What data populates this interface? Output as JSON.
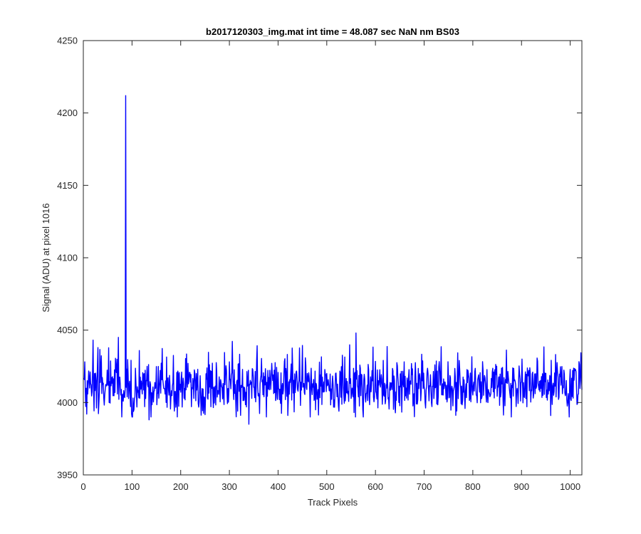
{
  "chart_data": {
    "type": "line",
    "title": "b2017120303_img.mat int time = 48.087 sec  NaN nm BS03",
    "xlabel": "Track Pixels",
    "ylabel": "Signal (ADU) at pixel 1016",
    "xlim": [
      0,
      1024
    ],
    "ylim": [
      3950,
      4250
    ],
    "xticks": [
      0,
      100,
      200,
      300,
      400,
      500,
      600,
      700,
      800,
      900,
      1000
    ],
    "yticks": [
      3950,
      4000,
      4050,
      4100,
      4150,
      4200,
      4250
    ],
    "grid": false,
    "legend": "none",
    "series": [
      {
        "color": "#0000ff",
        "baseline": 4012,
        "noise_amplitude": 10,
        "x_start": 1,
        "x_end": 1024,
        "spike": {
          "x": 87,
          "y": 4212
        },
        "notable_points": [
          {
            "x": 340,
            "y": 3985
          },
          {
            "x": 560,
            "y": 4048
          },
          {
            "x": 960,
            "y": 3991
          },
          {
            "x": 7,
            "y": 3992
          },
          {
            "x": 135,
            "y": 3988
          }
        ]
      }
    ]
  }
}
